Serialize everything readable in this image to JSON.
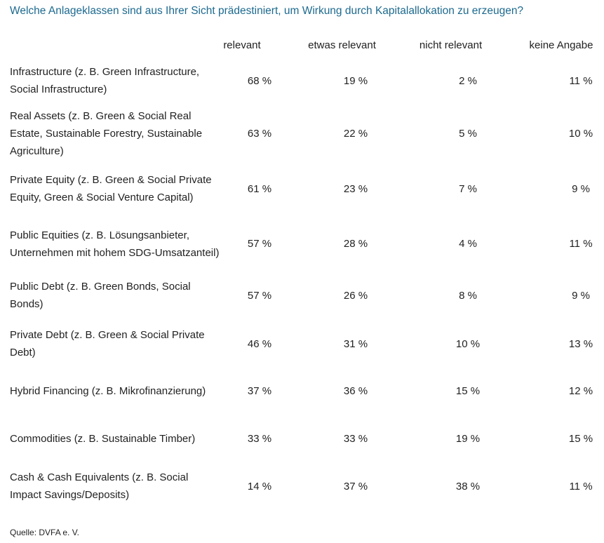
{
  "title": "Welche Anlageklassen sind aus Ihrer Sicht prädestiniert, um Wirkung durch Kapitalallokation zu erzeugen?",
  "columns": [
    "relevant",
    "etwas relevant",
    "nicht relevant",
    "keine Angabe"
  ],
  "rows": [
    {
      "label": "Infrastructure (z. B. Green Infrastructure, Social Infrastructure)",
      "values": [
        "68 %",
        "19 %",
        "2 %",
        "11 %"
      ]
    },
    {
      "label": "Real Assets (z. B. Green & Social Real Estate, Sustainable Forestry, Sustainable Agriculture)",
      "values": [
        "63 %",
        "22 %",
        "5 %",
        "10 %"
      ]
    },
    {
      "label": "Private Equity (z. B. Green & Social Private Equity, Green & Social Venture Capital)",
      "values": [
        "61 %",
        "23 %",
        "7 %",
        "9 %"
      ]
    },
    {
      "label": "Public Equities (z. B. Lösungsanbieter, Unternehmen mit hohem SDG-Umsatzanteil)",
      "values": [
        "57 %",
        "28 %",
        "4 %",
        "11 %"
      ]
    },
    {
      "label": "Public Debt (z. B. Green Bonds, Social Bonds)",
      "values": [
        "57 %",
        "26 %",
        "8 %",
        "9 %"
      ]
    },
    {
      "label": "Private Debt (z. B. Green & Social Private Debt)",
      "values": [
        "46 %",
        "31 %",
        "10 %",
        "13 %"
      ]
    },
    {
      "label": "Hybrid Financing (z. B. Mikrofinanzierung)",
      "values": [
        "37 %",
        "36 %",
        "15 %",
        "12 %"
      ]
    },
    {
      "label": "Commodities (z. B. Sustainable Timber)",
      "values": [
        "33 %",
        "33 %",
        "19 %",
        "15 %"
      ]
    },
    {
      "label": "Cash & Cash Equivalents (z. B. Social Impact Savings/Deposits)",
      "values": [
        "14 %",
        "37 %",
        "38 %",
        "11 %"
      ]
    }
  ],
  "source": "Quelle: DVFA e. V.",
  "colors": {
    "title": "#1d6a8f",
    "text": "#222222"
  }
}
